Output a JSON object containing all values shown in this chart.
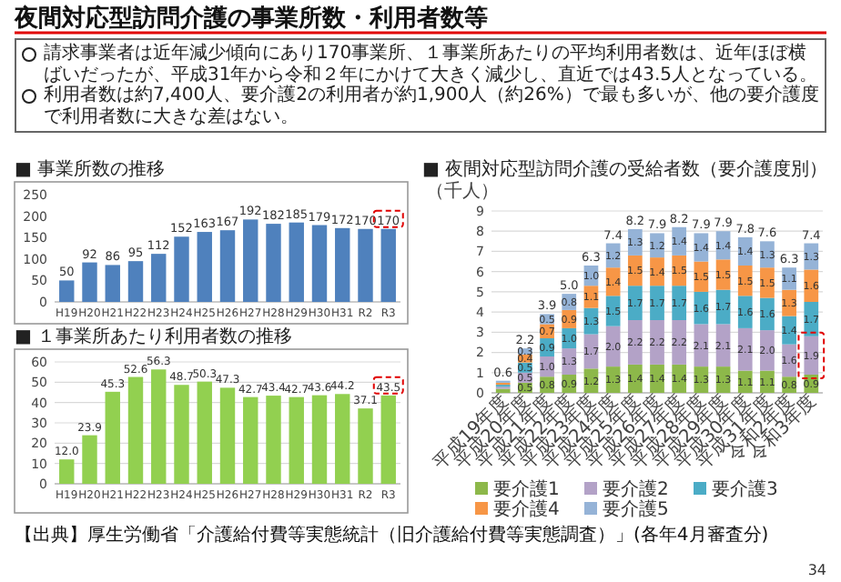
{
  "chart_data": [
    {
      "type": "other",
      "title": "夜間対応型訪問介護の事業所数・利用者数等",
      "annotations": [
        "請求事業者は近年減少傾向にあり170事業所、１事業所あたりの平均利用者数は、近年ほぼ横ばいだったが、平成31年から令和２年にかけて大きく減少し、直近では43.5人となっている。",
        "利用者数は約7,400人、要介護2の利用者が約1,900人（約26%）で最も多いが、他の要介護度で利用者数に大きな差はない。"
      ]
    },
    {
      "type": "bar",
      "title": "■ 事業所数の推移",
      "categories": [
        "H19",
        "H20",
        "H21",
        "H22",
        "H23",
        "H24",
        "H25",
        "H26",
        "H27",
        "H28",
        "H29",
        "H30",
        "H31",
        "R2",
        "R3"
      ],
      "values": [
        50,
        92,
        86,
        95,
        112,
        152,
        163,
        167,
        192,
        182,
        185,
        179,
        172,
        170,
        170
      ],
      "color": "#4f81bd",
      "ylim": [
        0,
        250
      ],
      "yticks": [
        0,
        50,
        100,
        150,
        200,
        250
      ],
      "data_labels": true
    },
    {
      "type": "bar",
      "title": "■ １事業所あたり利用者数の推移",
      "categories": [
        "H19",
        "H20",
        "H21",
        "H22",
        "H23",
        "H24",
        "H25",
        "H26",
        "H27",
        "H28",
        "H29",
        "H30",
        "H31",
        "R2",
        "R3"
      ],
      "values": [
        12.0,
        23.9,
        45.3,
        52.6,
        56.3,
        48.7,
        50.3,
        47.3,
        42.7,
        43.4,
        42.7,
        43.6,
        44.2,
        37.1,
        43.5
      ],
      "value_labels": [
        "12.0",
        "23.9",
        "45.3",
        "52.6",
        "56.3",
        "48.7",
        "50.3",
        "47.3",
        "42.7",
        "43.4",
        "42.7",
        "43.6",
        "44.2",
        "37.1",
        "43.5"
      ],
      "color": "#92d050",
      "ylim": [
        0,
        60
      ],
      "yticks": [
        0,
        10,
        20,
        30,
        40,
        50,
        60
      ],
      "grid": "y"
    },
    {
      "type": "bar",
      "stacked": true,
      "title": "■ 夜間対応型訪問介護の受給者数（要介護度別）",
      "ylabel": "（千人）",
      "categories": [
        "平成19年度",
        "平成20年度",
        "平成21年度",
        "平成22年度",
        "平成23年度",
        "平成24年度",
        "平成25年度",
        "平成26年度",
        "平成27年度",
        "平成28年度",
        "平成29年度",
        "平成30年度",
        "平成31年度",
        "令和2年度",
        "令和3年度"
      ],
      "ylim": [
        0,
        9
      ],
      "yticks": [
        0,
        1,
        2,
        3,
        4,
        5,
        6,
        7,
        8,
        9
      ],
      "grid": "y",
      "legend": "bottom",
      "series": [
        {
          "name": "要介護1",
          "color": "#8db84a",
          "values": [
            0.2,
            0.5,
            0.8,
            0.9,
            1.2,
            1.3,
            1.4,
            1.4,
            1.4,
            1.3,
            1.3,
            1.1,
            1.1,
            0.8,
            0.9
          ],
          "value_labels": [
            null,
            "0.5",
            "0.8",
            "0.9",
            "1.2",
            "1.3",
            "1.4",
            "1.4",
            "1.4",
            "1.3",
            "1.3",
            "1.1",
            "1.1",
            "0.8",
            "0.9"
          ]
        },
        {
          "name": "要介護2",
          "color": "#b3a2c7",
          "values": [
            0.1,
            0.5,
            1.0,
            1.3,
            1.7,
            2.0,
            2.2,
            2.2,
            2.2,
            2.1,
            2.1,
            2.1,
            2.0,
            1.6,
            1.9
          ],
          "value_labels": [
            null,
            "0.5",
            "1.0",
            "1.3",
            "1.7",
            "2.0",
            "2.2",
            "2.2",
            "2.2",
            "2.1",
            "2.1",
            "2.1",
            "2.0",
            "1.6",
            "1.9"
          ]
        },
        {
          "name": "要介護3",
          "color": "#4bacc6",
          "values": [
            0.1,
            0.5,
            0.9,
            1.0,
            1.3,
            1.5,
            1.7,
            1.7,
            1.7,
            1.6,
            1.7,
            1.6,
            1.6,
            1.4,
            1.7
          ],
          "value_labels": [
            null,
            "0.5",
            "0.9",
            "1.0",
            "1.3",
            "1.5",
            "1.7",
            "1.7",
            "1.7",
            "1.6",
            "1.7",
            "1.6",
            "1.6",
            "1.4",
            "1.7"
          ]
        },
        {
          "name": "要介護4",
          "color": "#f79646",
          "values": [
            0.1,
            0.4,
            0.7,
            0.9,
            1.1,
            1.4,
            1.5,
            1.4,
            1.5,
            1.5,
            1.5,
            1.5,
            1.5,
            1.3,
            1.6
          ],
          "value_labels": [
            null,
            "0.4",
            "0.7",
            "0.9",
            "1.1",
            "1.4",
            "1.5",
            "1.4",
            "1.5",
            "1.5",
            "1.5",
            "1.5",
            "1.5",
            "1.3",
            "1.6"
          ]
        },
        {
          "name": "要介護5",
          "color": "#95b3d7",
          "values": [
            0.1,
            0.3,
            0.5,
            0.8,
            1.0,
            1.2,
            1.3,
            1.2,
            1.4,
            1.4,
            1.4,
            1.4,
            1.3,
            1.1,
            1.3
          ],
          "value_labels": [
            null,
            "0.3",
            "0.5",
            "0.8",
            "1.0",
            "1.2",
            "1.3",
            "1.2",
            "1.4",
            "1.4",
            "1.4",
            "1.4",
            "1.3",
            "1.1",
            "1.3"
          ]
        }
      ],
      "totals": [
        "0.6",
        "2.2",
        "3.9",
        "5.0",
        "6.3",
        "7.4",
        "8.2",
        "7.9",
        "8.2",
        "7.9",
        "7.9",
        "7.8",
        "7.6",
        "6.3",
        "7.4"
      ]
    },
    {
      "type": "other",
      "annotations": [
        "【出典】厚生労働省「介護給付費等実態統計（旧介護給付費等実態調査）」(各年4月審査分)",
        "34"
      ]
    }
  ]
}
